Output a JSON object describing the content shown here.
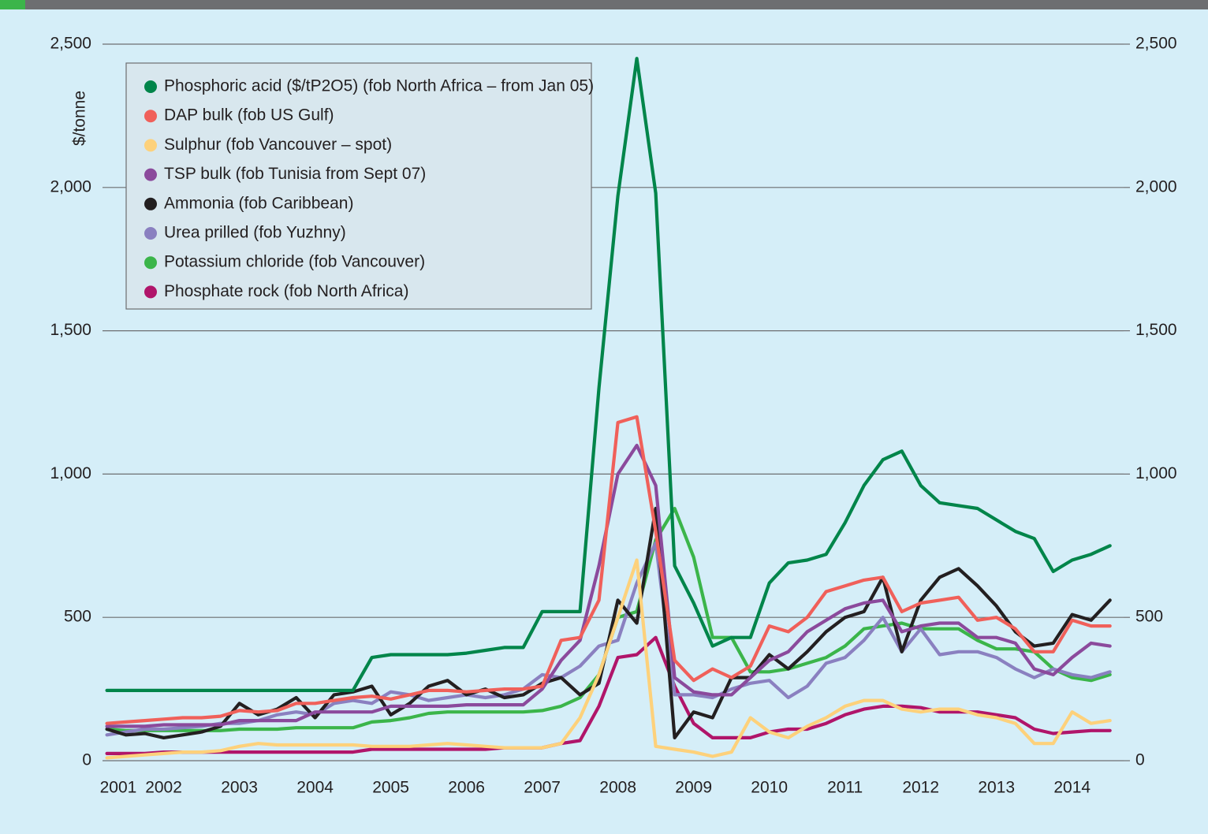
{
  "chart_data": {
    "type": "line",
    "y_label": "$/tonne",
    "x": [
      2001.25,
      2001.5,
      2001.75,
      2002,
      2002.25,
      2002.5,
      2002.75,
      2003,
      2003.25,
      2003.5,
      2003.75,
      2004,
      2004.25,
      2004.5,
      2004.75,
      2005,
      2005.25,
      2005.5,
      2005.75,
      2006,
      2006.25,
      2006.5,
      2006.75,
      2007,
      2007.25,
      2007.5,
      2007.75,
      2008,
      2008.25,
      2008.5,
      2008.75,
      2009,
      2009.25,
      2009.5,
      2009.75,
      2010,
      2010.25,
      2010.5,
      2010.75,
      2011,
      2011.25,
      2011.5,
      2011.75,
      2012,
      2012.25,
      2012.5,
      2012.75,
      2013,
      2013.25,
      2013.5,
      2013.75,
      2014,
      2014.25,
      2014.5
    ],
    "xlim": [
      2001.14,
      2014.68
    ],
    "xticks": [
      {
        "value": 2001.4,
        "label": "2001"
      },
      2002,
      2003,
      2004,
      2005,
      2006,
      2007,
      2008,
      2009,
      2010,
      2011,
      2012,
      2013,
      2014
    ],
    "ylim": [
      0,
      2500
    ],
    "yticks": [
      0,
      500,
      {
        "value": 1000,
        "label": "1,000"
      },
      {
        "value": 1500,
        "label": "1,500"
      },
      {
        "value": 2000,
        "label": "2,000"
      },
      {
        "value": 2500,
        "label": "2,500"
      }
    ],
    "y2lim": [
      0,
      2500
    ],
    "y2ticks": [
      0,
      500,
      {
        "value": 1000,
        "label": "1,000"
      },
      {
        "value": 1500,
        "label": "1,500"
      },
      {
        "value": 2000,
        "label": "2,000"
      },
      {
        "value": 2500,
        "label": "2,500"
      }
    ],
    "grid": true,
    "legend": "upper left",
    "series": [
      {
        "name": "Phosphoric acid ($/tP2O5) (fob North Africa – from Jan 05)",
        "color": "#00854a",
        "values": [
          245,
          245,
          245,
          245,
          245,
          245,
          245,
          245,
          245,
          245,
          245,
          245,
          245,
          245,
          360,
          370,
          370,
          370,
          370,
          375,
          385,
          395,
          395,
          520,
          520,
          520,
          1300,
          1970,
          2450,
          1980,
          680,
          550,
          400,
          430,
          430,
          620,
          690,
          700,
          720,
          830,
          960,
          1050,
          1080,
          960,
          900,
          890,
          880,
          840,
          800,
          775,
          660,
          700,
          720,
          750
        ]
      },
      {
        "name": "DAP bulk (fob US Gulf)",
        "color": "#f0605a",
        "values": [
          130,
          135,
          140,
          145,
          150,
          150,
          155,
          175,
          170,
          175,
          200,
          200,
          210,
          220,
          225,
          215,
          230,
          245,
          245,
          240,
          245,
          250,
          250,
          260,
          420,
          430,
          560,
          1180,
          1200,
          800,
          350,
          280,
          320,
          290,
          330,
          470,
          450,
          500,
          590,
          610,
          630,
          640,
          520,
          550,
          560,
          570,
          490,
          500,
          460,
          380,
          380,
          490,
          470,
          470
        ]
      },
      {
        "name": "Sulphur (fob Vancouver – spot)",
        "color": "#fdd17b",
        "values": [
          10,
          15,
          20,
          25,
          30,
          30,
          35,
          50,
          60,
          55,
          55,
          55,
          55,
          55,
          50,
          50,
          50,
          55,
          60,
          55,
          50,
          45,
          45,
          45,
          60,
          150,
          300,
          500,
          700,
          50,
          40,
          30,
          15,
          30,
          150,
          100,
          80,
          120,
          150,
          190,
          210,
          210,
          180,
          170,
          180,
          180,
          160,
          150,
          130,
          60,
          60,
          170,
          130,
          140
        ]
      },
      {
        "name": "TSP bulk  (fob Tunisia from Sept 07)",
        "color": "#8b4a9c",
        "values": [
          120,
          120,
          120,
          125,
          125,
          125,
          125,
          140,
          140,
          140,
          140,
          170,
          170,
          170,
          170,
          190,
          190,
          190,
          190,
          195,
          195,
          195,
          195,
          250,
          350,
          420,
          680,
          1000,
          1100,
          960,
          290,
          240,
          230,
          230,
          290,
          350,
          380,
          450,
          490,
          530,
          550,
          560,
          450,
          470,
          480,
          480,
          430,
          430,
          410,
          320,
          300,
          360,
          410,
          400
        ]
      },
      {
        "name": "Ammonia (fob Caribbean)",
        "color": "#231f20",
        "values": [
          110,
          90,
          95,
          80,
          90,
          100,
          120,
          200,
          160,
          180,
          220,
          150,
          230,
          240,
          260,
          160,
          200,
          260,
          280,
          230,
          250,
          220,
          230,
          270,
          290,
          230,
          270,
          560,
          480,
          880,
          80,
          170,
          150,
          290,
          290,
          370,
          320,
          380,
          450,
          500,
          520,
          640,
          380,
          560,
          640,
          670,
          610,
          540,
          450,
          400,
          410,
          510,
          490,
          560
        ]
      },
      {
        "name": "Urea prilled (fob Yuzhny)",
        "color": "#8a80c0",
        "values": [
          90,
          100,
          110,
          110,
          115,
          120,
          130,
          130,
          140,
          160,
          170,
          160,
          200,
          210,
          200,
          240,
          230,
          210,
          220,
          230,
          220,
          230,
          250,
          300,
          290,
          330,
          400,
          420,
          620,
          760,
          230,
          230,
          220,
          250,
          270,
          280,
          220,
          260,
          340,
          360,
          420,
          500,
          380,
          460,
          370,
          380,
          380,
          360,
          320,
          290,
          320,
          300,
          290,
          310
        ]
      },
      {
        "name": "Potassium chloride (fob Vancouver)",
        "color": "#3bb54a",
        "values": [
          110,
          105,
          105,
          105,
          105,
          105,
          105,
          110,
          110,
          110,
          115,
          115,
          115,
          115,
          135,
          140,
          150,
          165,
          170,
          170,
          170,
          170,
          170,
          175,
          190,
          220,
          300,
          500,
          520,
          770,
          880,
          710,
          430,
          430,
          310,
          310,
          320,
          340,
          360,
          400,
          460,
          470,
          480,
          460,
          460,
          460,
          420,
          390,
          390,
          380,
          320,
          290,
          280,
          300
        ]
      },
      {
        "name": "Phosphate rock (fob North Africa)",
        "color": "#b0156a",
        "values": [
          25,
          25,
          25,
          30,
          30,
          30,
          30,
          30,
          30,
          30,
          30,
          30,
          30,
          30,
          40,
          40,
          40,
          40,
          40,
          40,
          40,
          45,
          45,
          45,
          60,
          70,
          190,
          360,
          370,
          430,
          260,
          130,
          80,
          80,
          80,
          100,
          110,
          110,
          130,
          160,
          180,
          190,
          190,
          185,
          170,
          170,
          170,
          160,
          150,
          110,
          95,
          100,
          105,
          105
        ]
      }
    ]
  }
}
